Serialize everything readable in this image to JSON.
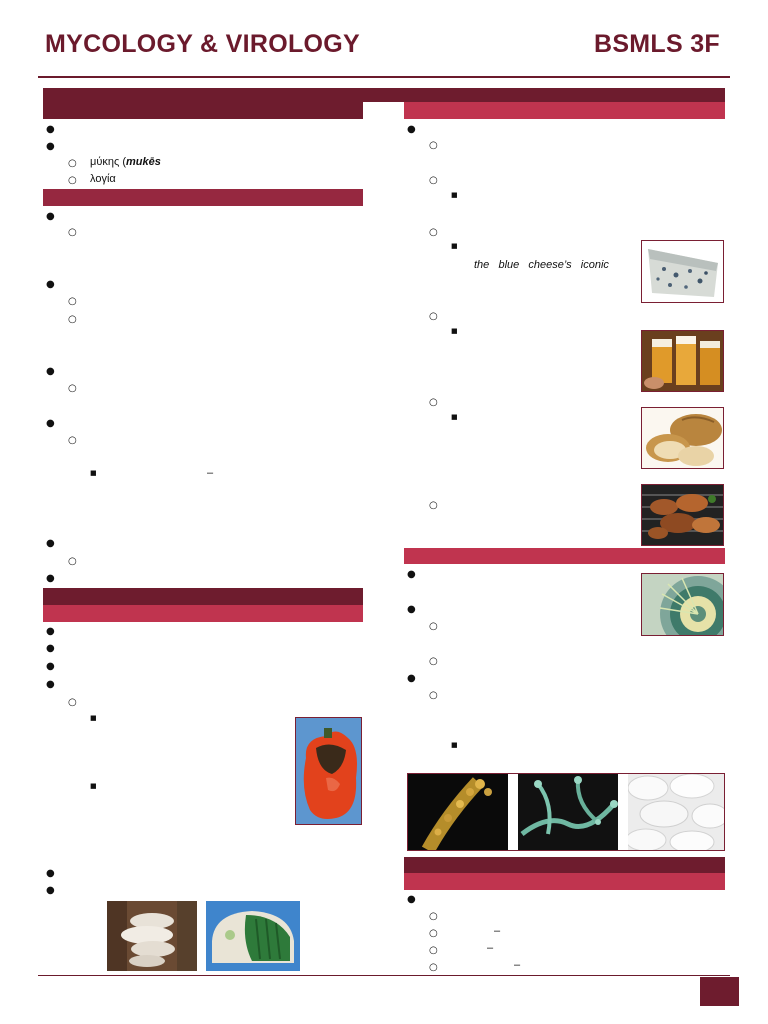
{
  "header": {
    "course_title": "MYCOLOGY & VIROLOGY",
    "section": "BSMLS 3F"
  },
  "etymology": {
    "greek_word_prefix": "μύκης (",
    "greek_word_translit": "mukēs",
    "logia": "λογία"
  },
  "blue_cheese_caption": "the   blue   cheese’s   iconic",
  "dashes": [
    "–",
    "–",
    "–",
    "–",
    "–"
  ],
  "images": {
    "blue_cheese": "blue-cheese-photo",
    "beer": "beer-photo",
    "bread": "bread-photo",
    "mushrooms": "mushrooms-photo",
    "penicillium_plate": "penicillium-plate-photo",
    "pepper": "moldy-pepper-photo",
    "bracket_fungus": "bracket-fungus-photo",
    "moldy_bread": "moldy-bread-photo",
    "micrograph_yellow": "conidiophore-micrograph-photo",
    "micrograph_green": "hyphae-micrograph-photo",
    "yeast_colonies": "yeast-colonies-photo"
  },
  "colors": {
    "maroon_dark": "#6e1c2e",
    "maroon_mid": "#962840",
    "crimson": "#c0344f"
  }
}
